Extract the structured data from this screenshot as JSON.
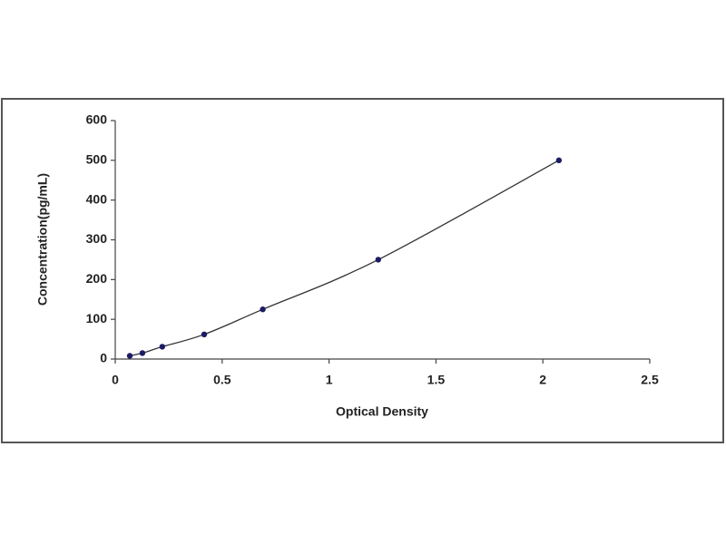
{
  "chart_data": {
    "type": "scatter",
    "x_label": "Optical Density",
    "y_label": "Concentration(pg/mL)",
    "series": [
      {
        "x": [
          0.068,
          0.127,
          0.22,
          0.416,
          0.69,
          1.23,
          2.075
        ],
        "values": [
          8,
          15,
          31,
          62,
          125,
          250,
          500
        ],
        "color": "#1c1c66",
        "line_color": "#333333"
      }
    ],
    "connect": true,
    "xlim": [
      0,
      2.5
    ],
    "xticks": [
      0,
      0.5,
      1,
      1.5,
      2,
      2.5
    ],
    "ylim": [
      0,
      600
    ],
    "yticks": [
      0,
      100,
      200,
      300,
      400,
      500,
      600
    ],
    "grid": false
  }
}
